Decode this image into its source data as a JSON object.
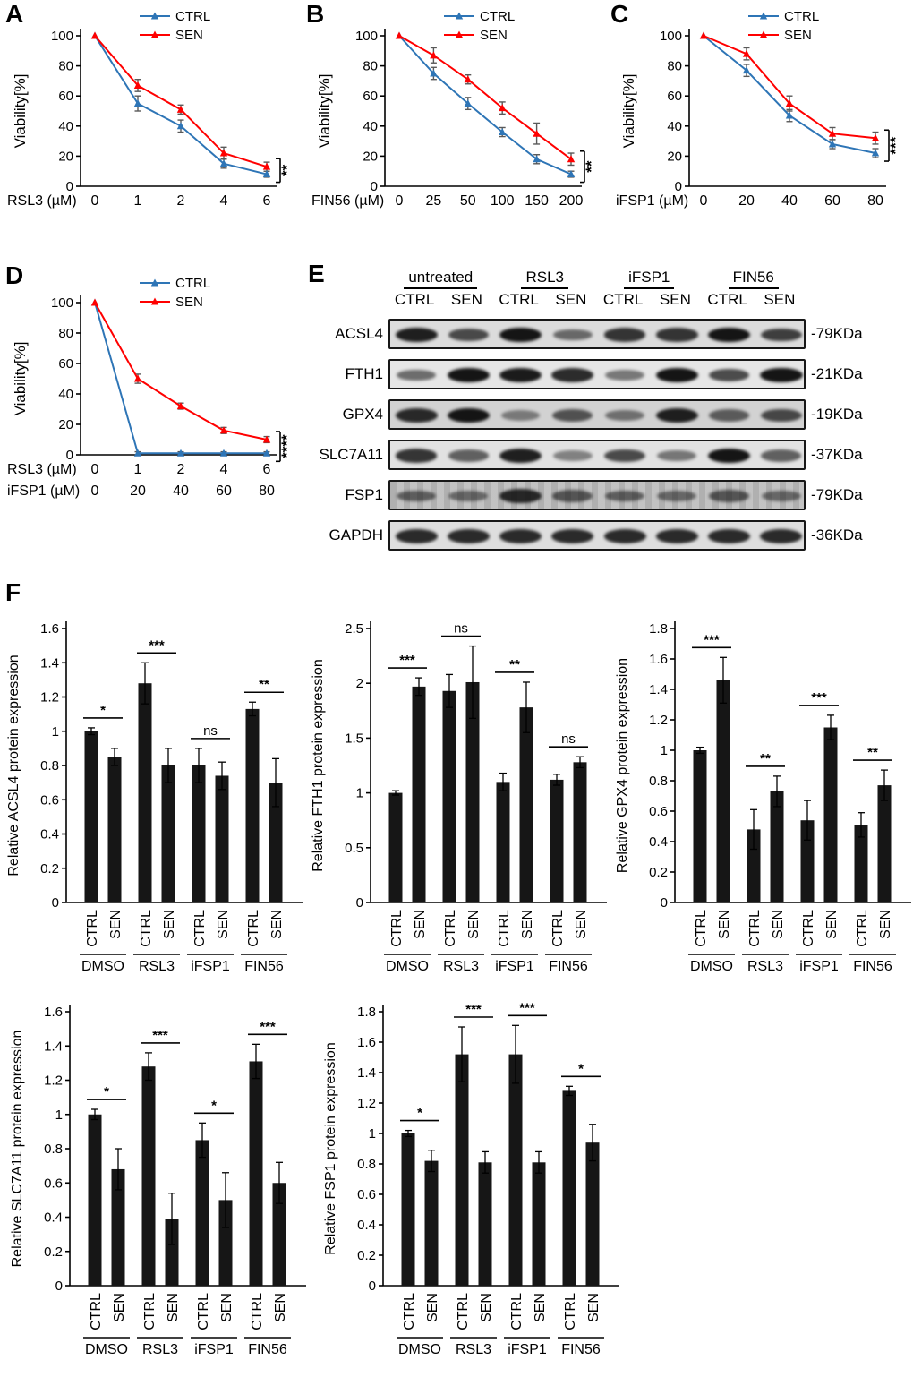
{
  "figure": {
    "panels": {
      "a": "A",
      "b": "B",
      "c": "C",
      "d": "D",
      "e": "E",
      "f": "F"
    }
  },
  "colors": {
    "ctrl": "#2E75B6",
    "sen": "#FF0000",
    "bar": "#161616",
    "error_bar": "#595959"
  },
  "chart_data": [
    {
      "id": "A",
      "type": "line",
      "ylabel": "Viability[%]",
      "ylim": [
        0,
        100
      ],
      "yticks": [
        0,
        20,
        40,
        60,
        80,
        100
      ],
      "xrows": [
        {
          "label": "RSL3 (µM)",
          "ticks": [
            "0",
            "1",
            "2",
            "4",
            "6"
          ]
        }
      ],
      "series": [
        {
          "name": "CTRL",
          "color": "#2E75B6",
          "values": [
            100,
            55,
            40,
            15,
            8
          ],
          "errors": [
            0,
            5,
            4,
            3,
            2
          ]
        },
        {
          "name": "SEN",
          "color": "#FF0000",
          "values": [
            100,
            67,
            51,
            22,
            13
          ],
          "errors": [
            0,
            4,
            3,
            4,
            3
          ]
        }
      ],
      "significance": "**"
    },
    {
      "id": "B",
      "type": "line",
      "ylabel": "Viability[%]",
      "ylim": [
        0,
        100
      ],
      "yticks": [
        0,
        20,
        40,
        60,
        80,
        100
      ],
      "xrows": [
        {
          "label": "FIN56 (µM)",
          "ticks": [
            "0",
            "25",
            "50",
            "100",
            "150",
            "200"
          ]
        }
      ],
      "series": [
        {
          "name": "CTRL",
          "color": "#2E75B6",
          "values": [
            100,
            75,
            55,
            36,
            18,
            8
          ],
          "errors": [
            0,
            4,
            4,
            3,
            3,
            2
          ]
        },
        {
          "name": "SEN",
          "color": "#FF0000",
          "values": [
            100,
            87,
            71,
            52,
            35,
            18
          ],
          "errors": [
            0,
            5,
            3,
            4,
            7,
            4
          ]
        }
      ],
      "significance": "**"
    },
    {
      "id": "C",
      "type": "line",
      "ylabel": "Viability[%]",
      "ylim": [
        0,
        100
      ],
      "yticks": [
        0,
        20,
        40,
        60,
        80,
        100
      ],
      "xrows": [
        {
          "label": "iFSP1 (µM)",
          "ticks": [
            "0",
            "20",
            "40",
            "60",
            "80"
          ]
        }
      ],
      "series": [
        {
          "name": "CTRL",
          "color": "#2E75B6",
          "values": [
            100,
            77,
            47,
            28,
            22
          ],
          "errors": [
            0,
            4,
            4,
            3,
            3
          ]
        },
        {
          "name": "SEN",
          "color": "#FF0000",
          "values": [
            100,
            88,
            55,
            35,
            32
          ],
          "errors": [
            0,
            4,
            5,
            4,
            4
          ]
        }
      ],
      "significance": "***"
    },
    {
      "id": "D",
      "type": "line",
      "ylabel": "Viability[%]",
      "ylim": [
        0,
        100
      ],
      "yticks": [
        0,
        20,
        40,
        60,
        80,
        100
      ],
      "xrows": [
        {
          "label": "RSL3 (µM)",
          "ticks": [
            "0",
            "1",
            "2",
            "4",
            "6"
          ]
        },
        {
          "label": "iFSP1 (µM)",
          "ticks": [
            "0",
            "20",
            "40",
            "60",
            "80"
          ]
        }
      ],
      "series": [
        {
          "name": "CTRL",
          "color": "#2E75B6",
          "values": [
            100,
            1,
            1,
            1,
            1
          ],
          "errors": [
            0,
            1,
            1,
            1,
            1
          ]
        },
        {
          "name": "SEN",
          "color": "#FF0000",
          "values": [
            100,
            50,
            32,
            16,
            10
          ],
          "errors": [
            0,
            3,
            2,
            2,
            2
          ]
        }
      ],
      "significance": "****"
    },
    {
      "id": "ACSL4",
      "type": "bar",
      "ylabel": "Relative ACSL4 protein  expression",
      "ylim": [
        0,
        1.6
      ],
      "ytick_step": 0.2,
      "groups": [
        "DMSO",
        "RSL3",
        "iFSP1",
        "FIN56"
      ],
      "bar_labels": [
        "CTRL",
        "SEN"
      ],
      "values": [
        [
          1.0,
          0.85
        ],
        [
          1.28,
          0.8
        ],
        [
          0.8,
          0.74
        ],
        [
          1.13,
          0.7
        ]
      ],
      "errors": [
        [
          0.02,
          0.05
        ],
        [
          0.12,
          0.1
        ],
        [
          0.1,
          0.08
        ],
        [
          0.04,
          0.14
        ]
      ],
      "sig": [
        "*",
        "***",
        "ns",
        "**"
      ]
    },
    {
      "id": "FTH1",
      "type": "bar",
      "ylabel": "Relative FTH1 protein expression",
      "ylim": [
        0,
        2.5
      ],
      "ytick_step": 0.5,
      "groups": [
        "DMSO",
        "RSL3",
        "iFSP1",
        "FIN56"
      ],
      "bar_labels": [
        "CTRL",
        "SEN"
      ],
      "values": [
        [
          1.0,
          1.97
        ],
        [
          1.93,
          2.01
        ],
        [
          1.1,
          1.78
        ],
        [
          1.12,
          1.28
        ]
      ],
      "errors": [
        [
          0.02,
          0.08
        ],
        [
          0.15,
          0.33
        ],
        [
          0.08,
          0.23
        ],
        [
          0.05,
          0.05
        ]
      ],
      "sig": [
        "***",
        "ns",
        "**",
        "ns"
      ]
    },
    {
      "id": "GPX4",
      "type": "bar",
      "ylabel": "Relative GPX4 protein  expression",
      "ylim": [
        0,
        1.8
      ],
      "ytick_step": 0.2,
      "groups": [
        "DMSO",
        "RSL3",
        "iFSP1",
        "FIN56"
      ],
      "bar_labels": [
        "CTRL",
        "SEN"
      ],
      "values": [
        [
          1.0,
          1.46
        ],
        [
          0.48,
          0.73
        ],
        [
          0.54,
          1.15
        ],
        [
          0.51,
          0.77
        ]
      ],
      "errors": [
        [
          0.02,
          0.15
        ],
        [
          0.13,
          0.1
        ],
        [
          0.13,
          0.08
        ],
        [
          0.08,
          0.1
        ]
      ],
      "sig": [
        "***",
        "**",
        "***",
        "**"
      ]
    },
    {
      "id": "SLC7A11",
      "type": "bar",
      "ylabel": "Relative SLC7A11 protein  expression",
      "ylim": [
        0,
        1.6
      ],
      "ytick_step": 0.2,
      "groups": [
        "DMSO",
        "RSL3",
        "iFSP1",
        "FIN56"
      ],
      "bar_labels": [
        "CTRL",
        "SEN"
      ],
      "values": [
        [
          1.0,
          0.68
        ],
        [
          1.28,
          0.39
        ],
        [
          0.85,
          0.5
        ],
        [
          1.31,
          0.6
        ]
      ],
      "errors": [
        [
          0.03,
          0.12
        ],
        [
          0.08,
          0.15
        ],
        [
          0.1,
          0.16
        ],
        [
          0.1,
          0.12
        ]
      ],
      "sig": [
        "*",
        "***",
        "*",
        "***"
      ]
    },
    {
      "id": "FSP1",
      "type": "bar",
      "ylabel": "Relative FSP1 protein expression",
      "ylim": [
        0,
        1.8
      ],
      "ytick_step": 0.2,
      "groups": [
        "DMSO",
        "RSL3",
        "iFSP1",
        "FIN56"
      ],
      "bar_labels": [
        "CTRL",
        "SEN"
      ],
      "values": [
        [
          1.0,
          0.82
        ],
        [
          1.52,
          0.81
        ],
        [
          1.52,
          0.81
        ],
        [
          1.28,
          0.94
        ]
      ],
      "errors": [
        [
          0.02,
          0.07
        ],
        [
          0.18,
          0.07
        ],
        [
          0.19,
          0.07
        ],
        [
          0.03,
          0.12
        ]
      ],
      "sig": [
        "*",
        "***",
        "***",
        "*"
      ]
    }
  ],
  "western_blot": {
    "group_labels": [
      "untreated",
      "RSL3",
      "iFSP1",
      "FIN56"
    ],
    "lane_labels": [
      "CTRL",
      "SEN",
      "CTRL",
      "SEN",
      "CTRL",
      "SEN",
      "CTRL",
      "SEN"
    ],
    "rows": [
      {
        "protein": "ACSL4",
        "kda": "-79KDa",
        "bg": "#dcdcdc",
        "intensities": [
          0.9,
          0.7,
          0.95,
          0.55,
          0.8,
          0.8,
          0.95,
          0.75
        ]
      },
      {
        "protein": "FTH1",
        "kda": "-21KDa",
        "bg": "#e6e6e6",
        "intensities": [
          0.55,
          0.95,
          0.92,
          0.85,
          0.5,
          0.95,
          0.7,
          0.95
        ]
      },
      {
        "protein": "GPX4",
        "kda": "-19KDa",
        "bg": "#d2d2d2",
        "intensities": [
          0.85,
          0.95,
          0.45,
          0.65,
          0.5,
          0.9,
          0.6,
          0.7
        ]
      },
      {
        "protein": "SLC7A11",
        "kda": "-37KDa",
        "bg": "#e2e2e2",
        "intensities": [
          0.8,
          0.6,
          0.9,
          0.45,
          0.7,
          0.5,
          0.95,
          0.6
        ]
      },
      {
        "protein": "FSP1",
        "kda": "-79KDa",
        "bg": "#c9c9c9",
        "noisy": true,
        "intensities": [
          0.55,
          0.5,
          0.85,
          0.6,
          0.55,
          0.5,
          0.6,
          0.5
        ]
      },
      {
        "protein": "GAPDH",
        "kda": "-36KDa",
        "bg": "#dedede",
        "intensities": [
          0.85,
          0.85,
          0.85,
          0.85,
          0.85,
          0.85,
          0.85,
          0.85
        ]
      }
    ]
  }
}
